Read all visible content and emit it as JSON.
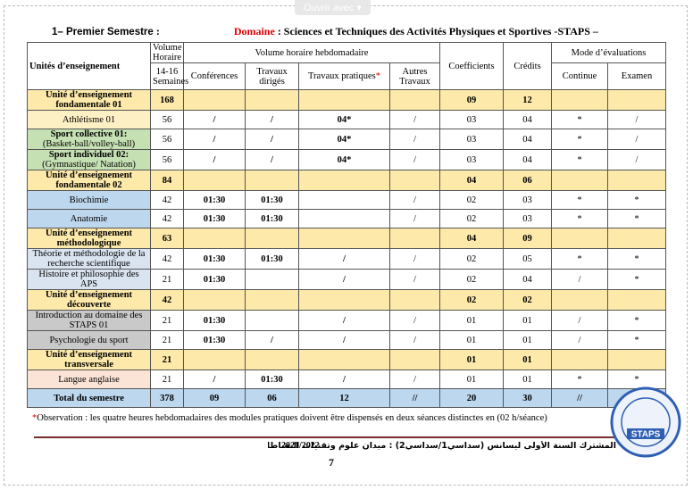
{
  "toolbar": {
    "button": "Ouvrir avec"
  },
  "heading": {
    "semester": "1– Premier Semestre",
    "colon": ":",
    "domain_label": "Domaine",
    "domain_text": ": Sciences et Techniques des Activités Physiques et Sportives -STAPS –"
  },
  "table": {
    "header": {
      "units": "Unités d’enseignement",
      "volume": "Volume Horaire",
      "weeks": "14-16 Semaines",
      "weekly": "Volume horaire hebdomadaire",
      "lectures": "Conférences",
      "td": "Travaux dirigés",
      "tp": "Travaux pratiques",
      "tp_mark": "*",
      "other": "Autres Travaux",
      "coef": "Coefficients",
      "credits": "Crédits",
      "mode": "Mode d’évaluations",
      "continuous": "Continue",
      "exam": "Examen"
    },
    "rows": [
      {
        "label": "Unité d’enseignement fondamentale 01",
        "color": "#fde9a9",
        "cells": [
          "168",
          null,
          null,
          null,
          null,
          "09",
          "12",
          null,
          null
        ]
      },
      {
        "label": "Athlétisme 01",
        "label_color": "#fdf0c4",
        "cells": [
          "56",
          "/",
          "/",
          "04*",
          "/",
          "03",
          "04",
          "*",
          "/"
        ]
      },
      {
        "label": "Sport collective 01:",
        "sublabel": "(Basket-ball/volley-ball)",
        "label_color": "#c5e0b3",
        "cells": [
          "56",
          "/",
          "/",
          "04*",
          "/",
          "03",
          "04",
          "*",
          "/"
        ]
      },
      {
        "label": "Sport individuel 02:",
        "sublabel": "(Gymnastique/ Natation)",
        "label_color": "#c5e0b3",
        "cells": [
          "56",
          "/",
          "/",
          "04*",
          "/",
          "03",
          "04",
          "*",
          "/"
        ]
      },
      {
        "label": "Unité d’enseignement fondamentale 02",
        "color": "#fde9a9",
        "cells": [
          "84",
          null,
          null,
          null,
          null,
          "04",
          "06",
          null,
          null
        ]
      },
      {
        "label": "Biochimie",
        "label_color": "#bdd7ee",
        "cells": [
          "42",
          "01:30",
          "01:30",
          null,
          "/",
          "02",
          "03",
          "*",
          "*"
        ]
      },
      {
        "label": "Anatomie",
        "label_color": "#bdd7ee",
        "cells": [
          "42",
          "01:30",
          "01:30",
          null,
          "/",
          "02",
          "03",
          "*",
          "*"
        ]
      },
      {
        "label": "Unité d’enseignement méthodologique",
        "color": "#fde9a9",
        "cells": [
          "63",
          null,
          null,
          null,
          null,
          "04",
          "09",
          null,
          null
        ]
      },
      {
        "label": "Théorie et méthodologie de la recherche scientifique",
        "label_color": "#dae3f0",
        "cells": [
          "42",
          "01:30",
          "01:30",
          "/",
          "/",
          "02",
          "05",
          "*",
          "*"
        ]
      },
      {
        "label": "Histoire et philosophie des APS",
        "label_color": "#dae3f0",
        "cells": [
          "21",
          "01:30",
          null,
          "/",
          "/",
          "02",
          "04",
          "/",
          "*"
        ]
      },
      {
        "label": "Unité d’enseignement découverte",
        "color": "#fde9a9",
        "cells": [
          "42",
          null,
          null,
          null,
          null,
          "02",
          "02",
          null,
          null
        ]
      },
      {
        "label": "Introduction au domaine des STAPS 01",
        "label_color": "#c9c9c9",
        "cells": [
          "21",
          "01:30",
          null,
          "/",
          "/",
          "01",
          "01",
          "/",
          "*"
        ]
      },
      {
        "label": "Psychologie du sport",
        "label_color": "#c9c9c9",
        "cells": [
          "21",
          "01:30",
          "/",
          "/",
          "/",
          "01",
          "01",
          "/",
          "*"
        ]
      },
      {
        "label": "Unité d’enseignement transversale",
        "color": "#fde9a9",
        "cells": [
          "21",
          null,
          null,
          null,
          null,
          "01",
          "01",
          null,
          null
        ]
      },
      {
        "label": "Langue anglaise",
        "label_color": "#fbe4d5",
        "cells": [
          "21",
          "/",
          "01:30",
          "/",
          "/",
          "01",
          "01",
          "*",
          "*"
        ]
      },
      {
        "label": "Total du semestre",
        "color": "#bdd7ee",
        "cells": [
          "378",
          "09",
          "06",
          "12",
          "//",
          "20",
          "30",
          "//",
          null
        ]
      }
    ]
  },
  "footnote": {
    "mark": "*",
    "text": "Observation : les quatre heures hebdomadaires des modules pratiques doivent être dispensés en deux séances distinctes en (02 h/séance)"
  },
  "footer": {
    "arabic": "المشترك السنة الأولى ليسانس (سداسي1/سداسي2) : ميدان علوم وتقنيات النشاطات البدنية والرياضية/",
    "year": "2021/2022",
    "page": "7"
  },
  "stamp": {
    "label": "STAPS"
  }
}
